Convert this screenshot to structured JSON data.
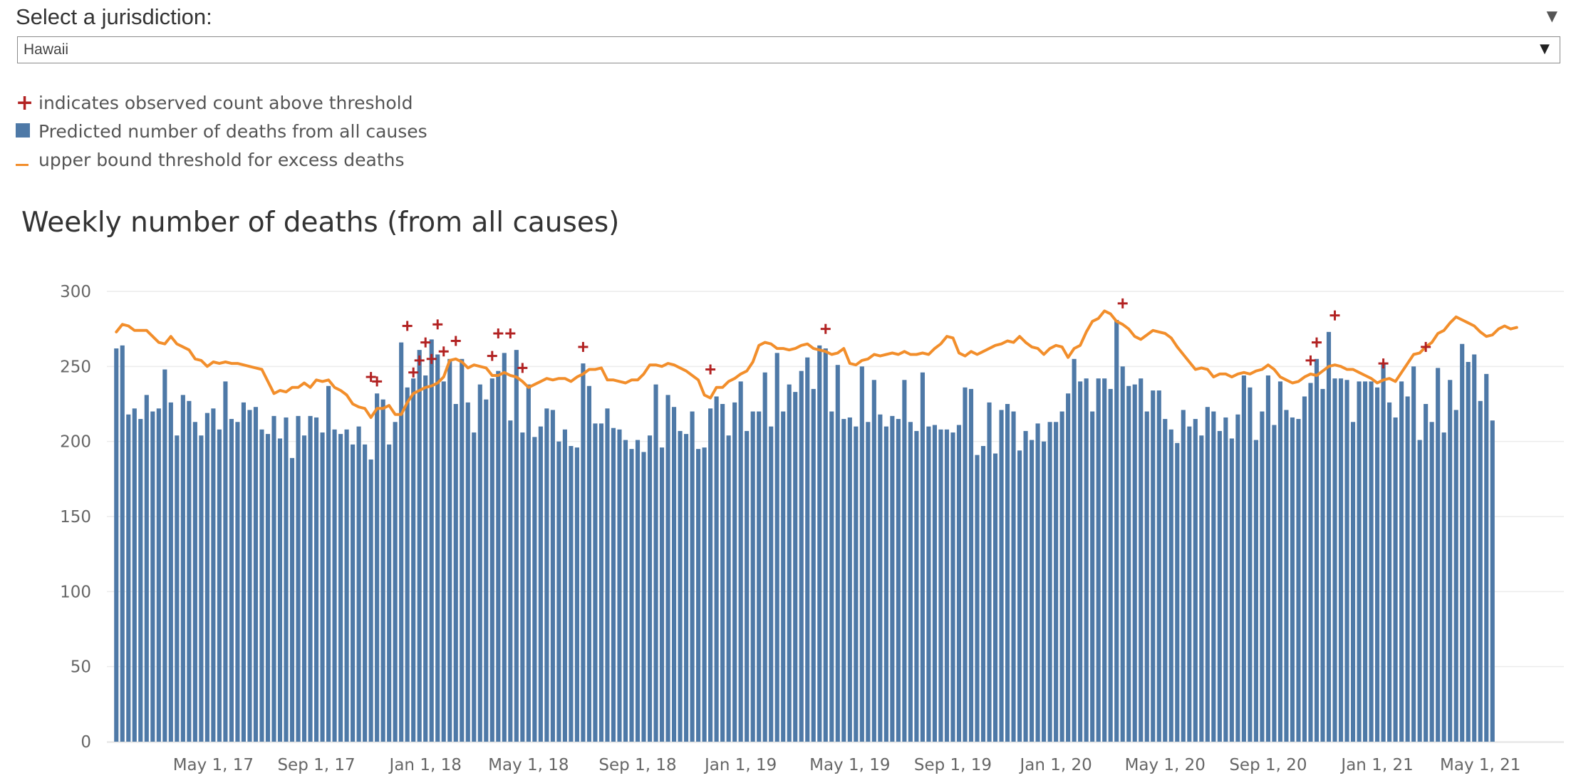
{
  "selector": {
    "label": "Select a jurisdiction:",
    "value": "Hawaii"
  },
  "legend": [
    {
      "symbol": "plus",
      "text": "indicates observed count above threshold",
      "color": "#b22222"
    },
    {
      "symbol": "box",
      "text": "Predicted number of deaths from all causes",
      "color": "#4e79a7"
    },
    {
      "symbol": "line",
      "text": "upper bound threshold for excess deaths",
      "color": "#f28e2b"
    }
  ],
  "colors": {
    "bar": "#4e79a7",
    "threshold": "#f28e2b",
    "marker": "#b22222",
    "grid": "#ececec"
  },
  "chart_data": {
    "type": "bar",
    "title": "Weekly number of deaths (from all causes)",
    "xlabel": "",
    "ylabel": "",
    "ylim": [
      0,
      300
    ],
    "yticks": [
      0,
      50,
      100,
      150,
      200,
      250,
      300
    ],
    "xtick_labels": [
      "May 1, 17",
      "Sep 1, 17",
      "Jan 1, 18",
      "May 1, 18",
      "Sep 1, 18",
      "Jan 1, 19",
      "May 1, 19",
      "Sep 1, 19",
      "Jan 1, 20",
      "May 1, 20",
      "Sep 1, 20",
      "Jan 1, 21",
      "May 1, 21"
    ],
    "grid": true,
    "series": [
      {
        "name": "Predicted number of deaths from all causes",
        "type": "bar",
        "values": [
          262,
          264,
          218,
          222,
          215,
          231,
          220,
          222,
          248,
          226,
          204,
          231,
          227,
          213,
          204,
          219,
          222,
          208,
          240,
          215,
          213,
          226,
          221,
          223,
          208,
          205,
          217,
          202,
          216,
          189,
          217,
          204,
          217,
          216,
          206,
          237,
          208,
          205,
          208,
          198,
          210,
          198,
          188,
          232,
          228,
          198,
          213,
          266,
          236,
          242,
          261,
          244,
          268,
          258,
          240,
          255,
          225,
          255,
          226,
          206,
          238,
          228,
          242,
          247,
          259,
          214,
          261,
          206,
          238,
          203,
          210,
          222,
          221,
          200,
          208,
          197,
          196,
          252,
          237,
          212,
          212,
          222,
          209,
          208,
          201,
          195,
          201,
          193,
          204,
          238,
          196,
          231,
          223,
          207,
          205,
          220,
          195,
          196,
          222,
          230,
          225,
          204,
          226,
          240,
          207,
          220,
          220,
          246,
          210,
          259,
          220,
          238,
          233,
          247,
          256,
          235,
          264,
          262,
          220,
          251,
          215,
          216,
          210,
          250,
          213,
          241,
          218,
          210,
          217,
          215,
          241,
          213,
          207,
          246,
          210,
          211,
          208,
          208,
          206,
          211,
          236,
          235,
          191,
          197,
          226,
          192,
          221,
          225,
          220,
          194,
          207,
          201,
          212,
          200,
          213,
          213,
          220,
          232,
          255,
          240,
          242,
          220,
          242,
          242,
          235,
          281,
          250,
          237,
          238,
          242,
          220,
          234,
          234,
          215,
          208,
          199,
          221,
          210,
          215,
          204,
          223,
          220,
          207,
          216,
          202,
          218,
          244,
          236,
          201,
          220,
          244,
          211,
          240,
          221,
          216,
          215,
          230,
          239,
          255,
          235,
          273,
          242,
          242,
          241,
          213,
          240,
          240,
          240,
          236,
          252,
          226,
          216,
          240,
          230,
          250,
          201,
          225,
          213,
          249,
          206,
          241,
          221,
          265,
          253,
          258,
          227,
          245,
          214
        ]
      },
      {
        "name": "upper bound threshold for excess deaths",
        "type": "line",
        "values": [
          273,
          278,
          277,
          274,
          274,
          274,
          270,
          266,
          265,
          270,
          265,
          263,
          261,
          255,
          254,
          250,
          253,
          252,
          253,
          252,
          252,
          251,
          250,
          249,
          248,
          240,
          232,
          234,
          233,
          236,
          236,
          239,
          236,
          241,
          240,
          241,
          236,
          234,
          231,
          225,
          223,
          222,
          216,
          222,
          222,
          224,
          218,
          218,
          226,
          232,
          234,
          236,
          237,
          239,
          243,
          254,
          255,
          253,
          249,
          251,
          250,
          249,
          244,
          244,
          246,
          244,
          243,
          240,
          236,
          238,
          240,
          242,
          241,
          242,
          242,
          240,
          243,
          245,
          248,
          248,
          249,
          241,
          241,
          240,
          239,
          241,
          241,
          245,
          251,
          251,
          250,
          252,
          251,
          249,
          247,
          244,
          241,
          231,
          229,
          236,
          236,
          240,
          242,
          245,
          247,
          253,
          264,
          266,
          265,
          262,
          262,
          261,
          262,
          264,
          265,
          262,
          261,
          260,
          258,
          259,
          262,
          252,
          251,
          254,
          255,
          258,
          257,
          258,
          259,
          258,
          260,
          258,
          258,
          259,
          258,
          262,
          265,
          270,
          269,
          259,
          257,
          260,
          258,
          260,
          262,
          264,
          265,
          267,
          266,
          270,
          266,
          263,
          262,
          258,
          262,
          264,
          263,
          256,
          262,
          264,
          273,
          280,
          282,
          287,
          285,
          280,
          278,
          275,
          270,
          268,
          271,
          274,
          273,
          272,
          269,
          263,
          258,
          253,
          248,
          249,
          248,
          243,
          245,
          245,
          243,
          245,
          246,
          245,
          247,
          248,
          251,
          248,
          243,
          241,
          239,
          240,
          243,
          245,
          244,
          247,
          250,
          251,
          250,
          248,
          248,
          246,
          244,
          242,
          239,
          241,
          242,
          240,
          246,
          252,
          258,
          259,
          263,
          266,
          272,
          274,
          279,
          283,
          281,
          279,
          277,
          273,
          270,
          271,
          275,
          277,
          275,
          276
        ]
      },
      {
        "name": "indicates observed count above threshold",
        "type": "marker",
        "points": [
          [
            42,
            243
          ],
          [
            43,
            240
          ],
          [
            48,
            277
          ],
          [
            49,
            246
          ],
          [
            50,
            254
          ],
          [
            51,
            266
          ],
          [
            52,
            255
          ],
          [
            53,
            278
          ],
          [
            54,
            260
          ],
          [
            56,
            267
          ],
          [
            62,
            257
          ],
          [
            63,
            272
          ],
          [
            65,
            272
          ],
          [
            67,
            249
          ],
          [
            77,
            263
          ],
          [
            98,
            248
          ],
          [
            117,
            275
          ],
          [
            166,
            292
          ],
          [
            197,
            254
          ],
          [
            198,
            266
          ],
          [
            201,
            284
          ],
          [
            209,
            252
          ],
          [
            216,
            263
          ]
        ]
      }
    ]
  }
}
